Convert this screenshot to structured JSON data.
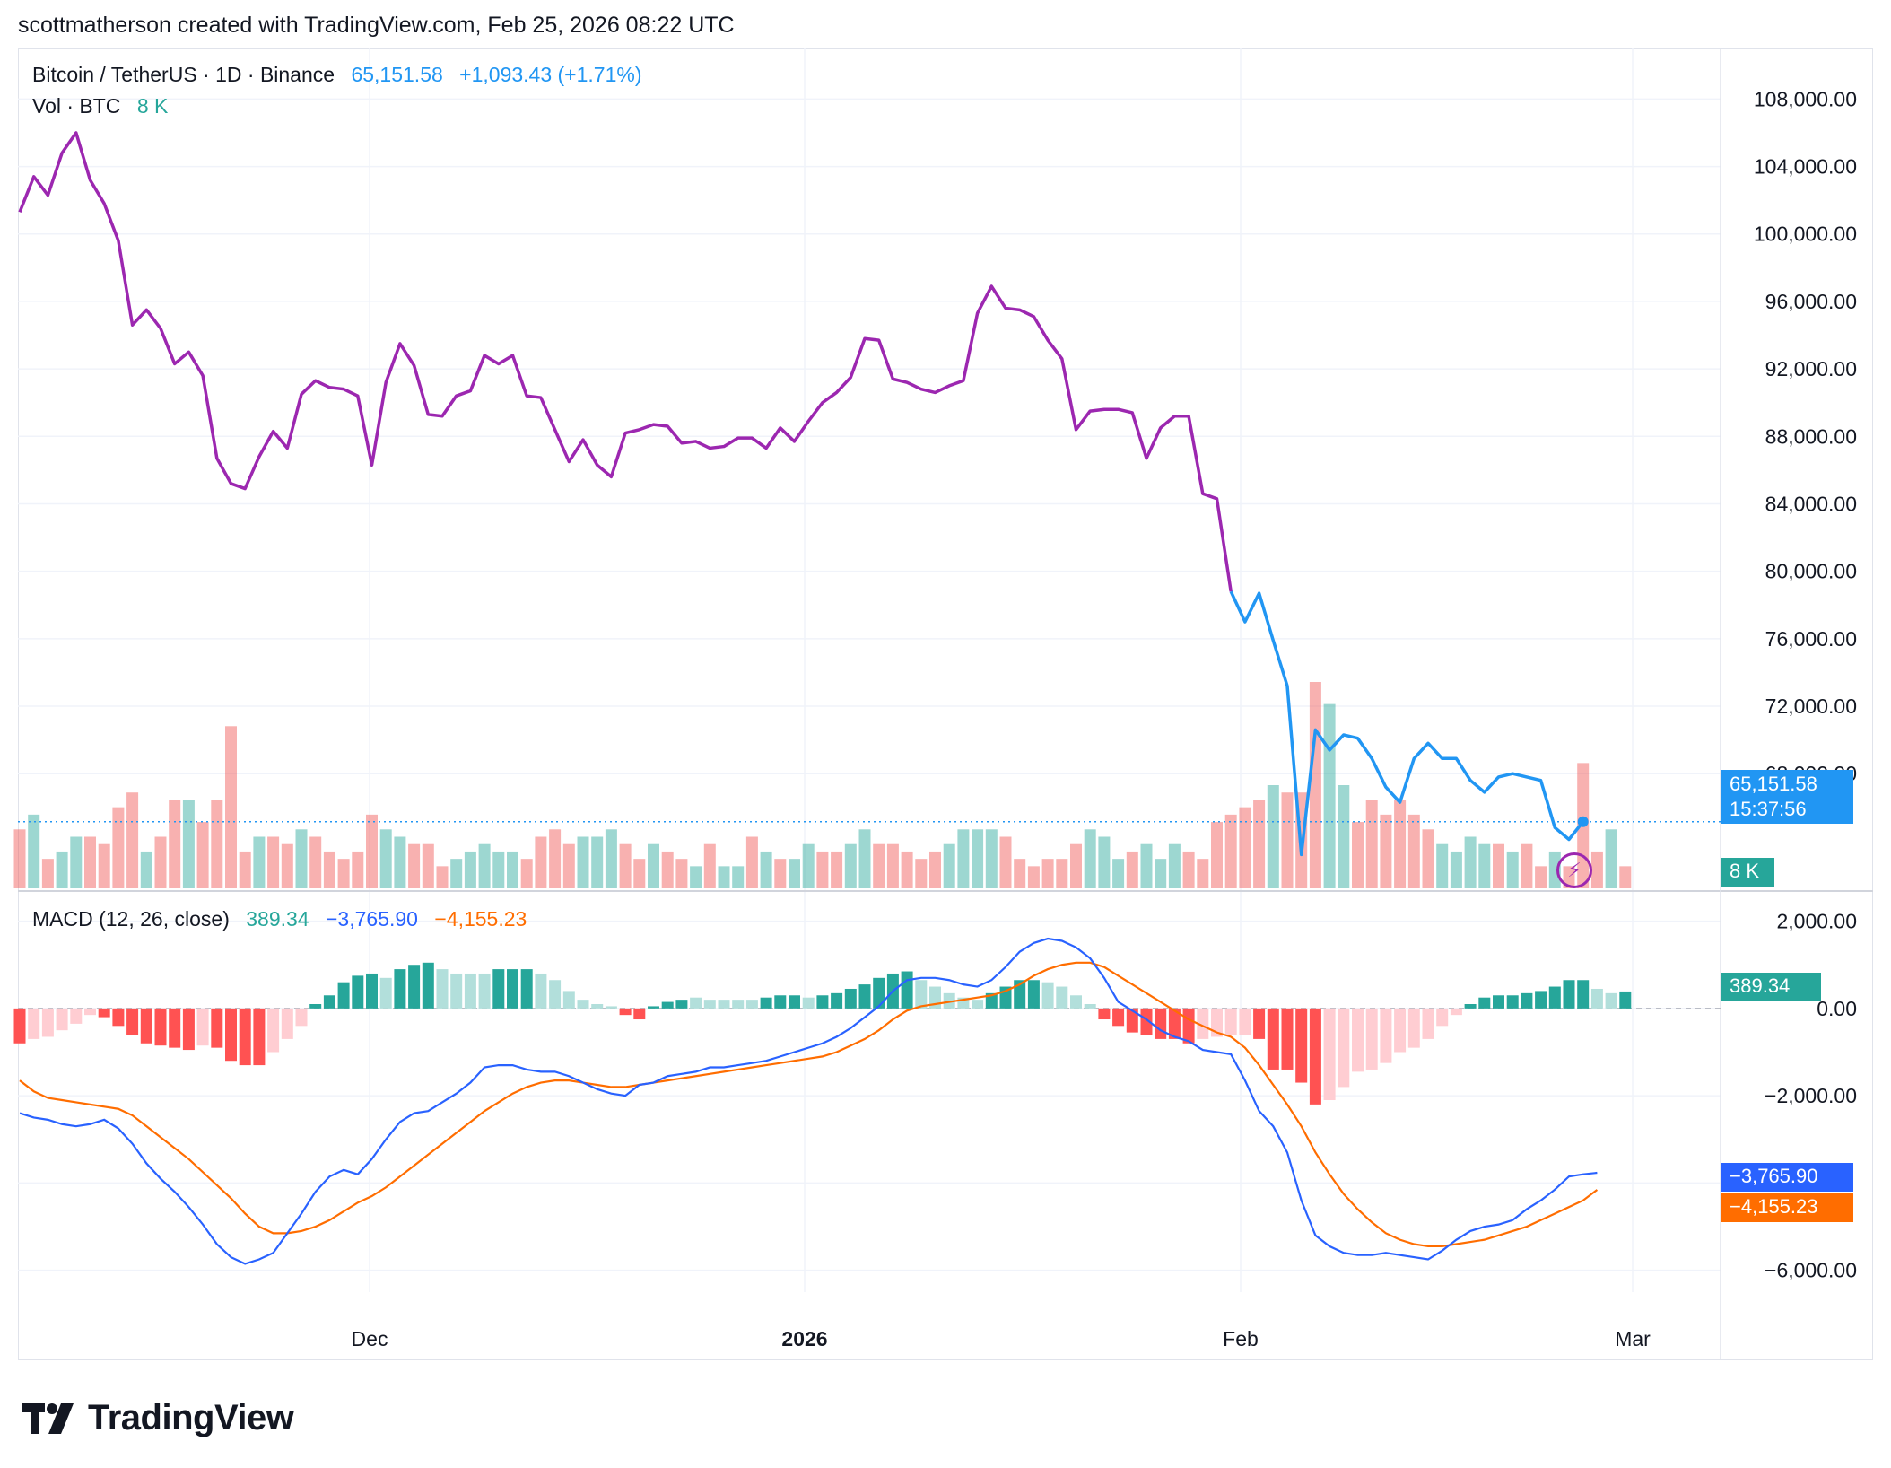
{
  "header": {
    "credit": "scottmatherson created with TradingView.com, Feb 25, 2026 08:22 UTC"
  },
  "legend": {
    "symbol": "Bitcoin / TetherUS · 1D · Binance",
    "price": "65,151.58",
    "change": "+1,093.43 (+1.71%)",
    "vol_label": "Vol · BTC",
    "vol_value": "8 K",
    "macd_label": "MACD (12, 26, close)",
    "macd_hist": "389.34",
    "macd_line": "−3,765.90",
    "macd_signal": "−4,155.23"
  },
  "tags": {
    "price": "65,151.58",
    "countdown": "15:37:56",
    "vol": "8 K",
    "hist": "389.34",
    "macd": "−3,765.90",
    "signal": "−4,155.23"
  },
  "logo": {
    "text": "TradingView"
  },
  "colors": {
    "price_line_early": "#9c27b0",
    "price_line_late": "#2196f3",
    "vol_up": "#26a69a",
    "vol_down": "#ef5350",
    "macd_line": "#2962ff",
    "signal_line": "#ff6d00",
    "hist_up_strong": "#26a69a",
    "hist_up_weak": "#b2dfdb",
    "hist_down_strong": "#ff5252",
    "hist_down_weak": "#ffcdd2",
    "price_tag": "#2196f3",
    "vol_tag": "#26a69a"
  },
  "chart_data": [
    {
      "type": "line",
      "title": "Bitcoin / TetherUS · 1D · Binance",
      "x_ticks": [
        "Dec",
        "2026",
        "Feb",
        "Mar"
      ],
      "y_ticks": [
        "108,000.00",
        "104,000.00",
        "100,000.00",
        "96,000.00",
        "92,000.00",
        "88,000.00",
        "84,000.00",
        "80,000.00",
        "76,000.00",
        "72,000.00",
        "68,000.00"
      ],
      "ylim": [
        61200,
        111000
      ],
      "x_start": "2025-11-06",
      "y": [
        101300,
        103400,
        102300,
        104800,
        106000,
        103200,
        101800,
        99600,
        94600,
        95500,
        94400,
        92300,
        93000,
        91600,
        86700,
        85200,
        84900,
        86800,
        88300,
        87300,
        90500,
        91300,
        90900,
        90800,
        90400,
        86300,
        91200,
        93500,
        92200,
        89300,
        89200,
        90400,
        90700,
        92800,
        92300,
        92800,
        90400,
        90300,
        88400,
        86500,
        87800,
        86300,
        85600,
        88200,
        88400,
        88700,
        88600,
        87600,
        87700,
        87300,
        87400,
        87900,
        87900,
        87300,
        88500,
        87700,
        88900,
        90000,
        90600,
        91500,
        93800,
        93700,
        91400,
        91200,
        90800,
        90600,
        91000,
        91300,
        95300,
        96900,
        95600,
        95500,
        95100,
        93700,
        92600,
        88400,
        89500,
        89600,
        89600,
        89400,
        86700,
        88500,
        89200,
        89200,
        84600,
        84300,
        78800,
        77000,
        78700,
        75900,
        73200,
        63200,
        70600,
        69400,
        70300,
        70100,
        68900,
        67200,
        66300,
        68900,
        69800,
        68900,
        68900,
        67600,
        66900,
        67800,
        68000,
        67800,
        67600,
        64800,
        64100,
        65151.58
      ],
      "color_change_index": 86
    },
    {
      "type": "bar",
      "title": "Vol · BTC",
      "volume_scale_max": 28,
      "values": [
        8,
        10,
        4,
        5,
        7,
        7,
        6,
        11,
        13,
        5,
        7,
        12,
        12,
        9,
        12,
        22,
        5,
        7,
        7,
        6,
        8,
        7,
        5,
        4,
        5,
        10,
        8,
        7,
        6,
        6,
        3,
        4,
        5,
        6,
        5,
        5,
        4,
        7,
        8,
        6,
        7,
        7,
        8,
        6,
        4,
        6,
        5,
        4,
        3,
        6,
        3,
        3,
        7,
        5,
        4,
        4,
        6,
        5,
        5,
        6,
        8,
        6,
        6,
        5,
        4,
        5,
        6,
        8,
        8,
        8,
        7,
        4,
        3,
        4,
        4,
        6,
        8,
        7,
        4,
        5,
        6,
        4,
        6,
        5,
        4,
        9,
        10,
        11,
        12,
        14,
        13,
        13,
        28,
        25,
        14,
        9,
        12,
        10,
        12,
        10,
        8,
        6,
        5,
        7,
        6,
        6,
        5,
        6,
        3,
        5,
        3,
        17,
        5,
        8,
        3
      ],
      "up": [
        0,
        1,
        0,
        1,
        1,
        0,
        0,
        0,
        0,
        1,
        0,
        0,
        1,
        0,
        0,
        0,
        0,
        1,
        0,
        0,
        1,
        0,
        0,
        0,
        0,
        0,
        1,
        1,
        0,
        0,
        0,
        1,
        1,
        1,
        1,
        1,
        0,
        0,
        0,
        0,
        1,
        1,
        1,
        0,
        0,
        1,
        0,
        0,
        1,
        0,
        1,
        1,
        0,
        1,
        0,
        1,
        1,
        0,
        0,
        1,
        1,
        0,
        0,
        0,
        0,
        0,
        1,
        1,
        1,
        1,
        0,
        0,
        0,
        0,
        0,
        0,
        1,
        1,
        1,
        0,
        1,
        1,
        1,
        0,
        0,
        0,
        0,
        0,
        0,
        1,
        0,
        0,
        0,
        1,
        1,
        0,
        0,
        0,
        0,
        0,
        0,
        1,
        1,
        1,
        1,
        0,
        1,
        0,
        0,
        1,
        0,
        0,
        0,
        1,
        0
      ]
    },
    {
      "type": "bar",
      "title": "MACD (12, 26, close)",
      "y_ticks": [
        "2,000.00",
        "0.00",
        "−2,000.00",
        "−6,000.00"
      ],
      "ylim": [
        -6500,
        2300
      ],
      "histogram": [
        -800,
        -700,
        -650,
        -500,
        -350,
        -150,
        -200,
        -400,
        -600,
        -800,
        -850,
        -900,
        -950,
        -850,
        -900,
        -1200,
        -1300,
        -1300,
        -1000,
        -700,
        -400,
        100,
        300,
        600,
        750,
        800,
        700,
        900,
        1000,
        1050,
        900,
        800,
        800,
        800,
        900,
        900,
        900,
        800,
        650,
        400,
        200,
        100,
        50,
        -150,
        -250,
        50,
        150,
        200,
        250,
        200,
        200,
        200,
        200,
        250,
        300,
        300,
        250,
        300,
        350,
        450,
        550,
        700,
        800,
        850,
        650,
        500,
        350,
        250,
        200,
        350,
        500,
        650,
        650,
        600,
        500,
        300,
        100,
        -250,
        -400,
        -550,
        -600,
        -700,
        -700,
        -800,
        -700,
        -650,
        -600,
        -600,
        -700,
        -1400,
        -1400,
        -1700,
        -2200,
        -2100,
        -1800,
        -1450,
        -1400,
        -1250,
        -1000,
        -900,
        -700,
        -400,
        -150,
        100,
        250,
        300,
        300,
        350,
        400,
        500,
        650,
        650,
        450,
        350,
        389.34
      ],
      "macd_line": [
        -2400,
        -2500,
        -2550,
        -2650,
        -2700,
        -2650,
        -2550,
        -2750,
        -3100,
        -3550,
        -3900,
        -4200,
        -4550,
        -4950,
        -5400,
        -5700,
        -5850,
        -5750,
        -5600,
        -5150,
        -4700,
        -4200,
        -3850,
        -3700,
        -3800,
        -3450,
        -3000,
        -2600,
        -2400,
        -2350,
        -2150,
        -1950,
        -1700,
        -1350,
        -1300,
        -1300,
        -1400,
        -1450,
        -1450,
        -1550,
        -1700,
        -1850,
        -1950,
        -2000,
        -1750,
        -1700,
        -1550,
        -1500,
        -1450,
        -1350,
        -1350,
        -1300,
        -1250,
        -1200,
        -1100,
        -1000,
        -900,
        -800,
        -650,
        -450,
        -200,
        50,
        400,
        650,
        700,
        700,
        650,
        550,
        500,
        650,
        950,
        1300,
        1500,
        1600,
        1550,
        1400,
        1150,
        700,
        150,
        -50,
        -250,
        -500,
        -650,
        -750,
        -950,
        -1000,
        -1050,
        -1650,
        -2350,
        -2700,
        -3300,
        -4400,
        -5200,
        -5450,
        -5600,
        -5650,
        -5650,
        -5600,
        -5650,
        -5700,
        -5750,
        -5550,
        -5300,
        -5100,
        -5000,
        -4950,
        -4850,
        -4600,
        -4400,
        -4150,
        -3850,
        -3800,
        -3765.9
      ],
      "signal_line": [
        -1650,
        -1900,
        -2050,
        -2100,
        -2150,
        -2200,
        -2250,
        -2300,
        -2450,
        -2700,
        -2950,
        -3200,
        -3450,
        -3750,
        -4050,
        -4350,
        -4700,
        -5000,
        -5150,
        -5150,
        -5100,
        -5000,
        -4850,
        -4650,
        -4450,
        -4300,
        -4100,
        -3850,
        -3600,
        -3350,
        -3100,
        -2850,
        -2600,
        -2350,
        -2150,
        -1950,
        -1800,
        -1700,
        -1650,
        -1650,
        -1700,
        -1750,
        -1800,
        -1800,
        -1750,
        -1700,
        -1650,
        -1600,
        -1550,
        -1500,
        -1450,
        -1400,
        -1350,
        -1300,
        -1250,
        -1200,
        -1150,
        -1100,
        -1000,
        -850,
        -700,
        -500,
        -250,
        -50,
        50,
        100,
        150,
        200,
        250,
        300,
        400,
        550,
        750,
        900,
        1000,
        1050,
        1050,
        950,
        750,
        550,
        350,
        150,
        -50,
        -250,
        -400,
        -550,
        -650,
        -900,
        -1300,
        -1750,
        -2200,
        -2700,
        -3300,
        -3800,
        -4250,
        -4600,
        -4900,
        -5150,
        -5300,
        -5400,
        -5450,
        -5450,
        -5400,
        -5350,
        -5300,
        -5200,
        -5100,
        -5000,
        -4850,
        -4700,
        -4550,
        -4400,
        -4155.23
      ],
      "hist_strength": [
        1,
        0,
        0,
        0,
        0,
        0,
        1,
        1,
        1,
        1,
        1,
        1,
        1,
        0,
        1,
        1,
        1,
        1,
        0,
        0,
        0,
        1,
        1,
        1,
        1,
        1,
        0,
        1,
        1,
        1,
        0,
        0,
        0,
        0,
        1,
        1,
        1,
        0,
        0,
        0,
        0,
        0,
        0,
        1,
        1,
        1,
        1,
        1,
        0,
        0,
        0,
        0,
        0,
        1,
        1,
        1,
        0,
        1,
        1,
        1,
        1,
        1,
        1,
        1,
        0,
        0,
        0,
        0,
        0,
        1,
        1,
        1,
        1,
        0,
        0,
        0,
        0,
        1,
        1,
        1,
        1,
        1,
        1,
        1,
        0,
        0,
        0,
        0,
        1,
        1,
        1,
        1,
        1,
        0,
        0,
        0,
        0,
        0,
        0,
        0,
        0,
        0,
        0,
        1,
        1,
        1,
        1,
        1,
        1,
        1,
        1,
        1,
        0,
        0,
        1
      ]
    }
  ]
}
